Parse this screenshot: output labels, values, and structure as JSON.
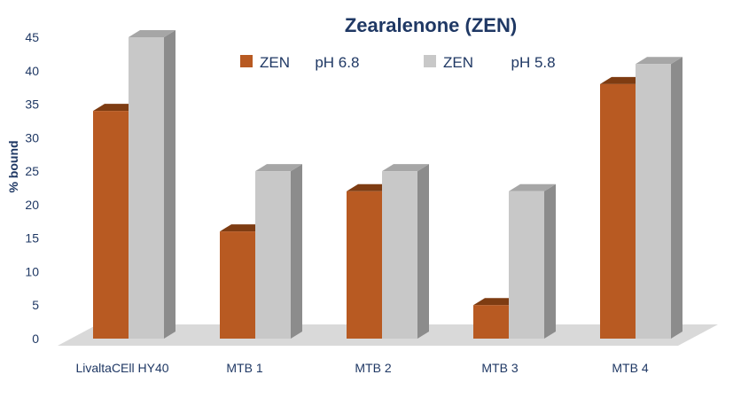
{
  "chart_data": {
    "type": "bar",
    "title": "Zearalenone (ZEN)",
    "ylabel": "% bound",
    "xlabel": "",
    "categories": [
      "LivaltaCEll HY40",
      "MTB 1",
      "MTB 2",
      "MTB 3",
      "MTB  4"
    ],
    "series": [
      {
        "name": "ZEN      pH 6.8",
        "color": "#b85a22",
        "values": [
          34,
          16,
          22,
          5,
          38
        ]
      },
      {
        "name": "ZEN         pH 5.8",
        "color": "#c8c8c8",
        "values": [
          45,
          25,
          25,
          22,
          41
        ]
      }
    ],
    "ylim": [
      0,
      45
    ],
    "yticks": [
      0,
      5,
      10,
      15,
      20,
      25,
      30,
      35,
      40,
      45
    ],
    "grid": false,
    "legend_position": "top-center",
    "style": "3d-bars"
  }
}
